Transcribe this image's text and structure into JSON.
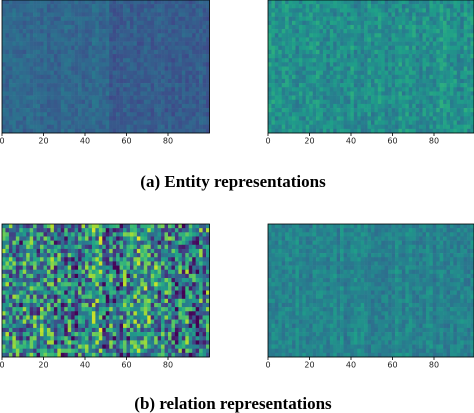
{
  "figure": {
    "rows": [
      {
        "caption": "(a) Entity representations",
        "panels": [
          {
            "xlim": [
              0,
              100
            ],
            "xticks": [
              0,
              20,
              40,
              60,
              80
            ]
          },
          {
            "xlim": [
              0,
              100
            ],
            "xticks": [
              0,
              20,
              40,
              60,
              80
            ]
          }
        ]
      },
      {
        "caption": "(b) relation representations",
        "panels": [
          {
            "xlim": [
              0,
              100
            ],
            "xticks": [
              0,
              20,
              40,
              60,
              80
            ]
          },
          {
            "xlim": [
              0,
              100
            ],
            "xticks": [
              0,
              20,
              40,
              60,
              80
            ]
          }
        ]
      }
    ]
  }
}
